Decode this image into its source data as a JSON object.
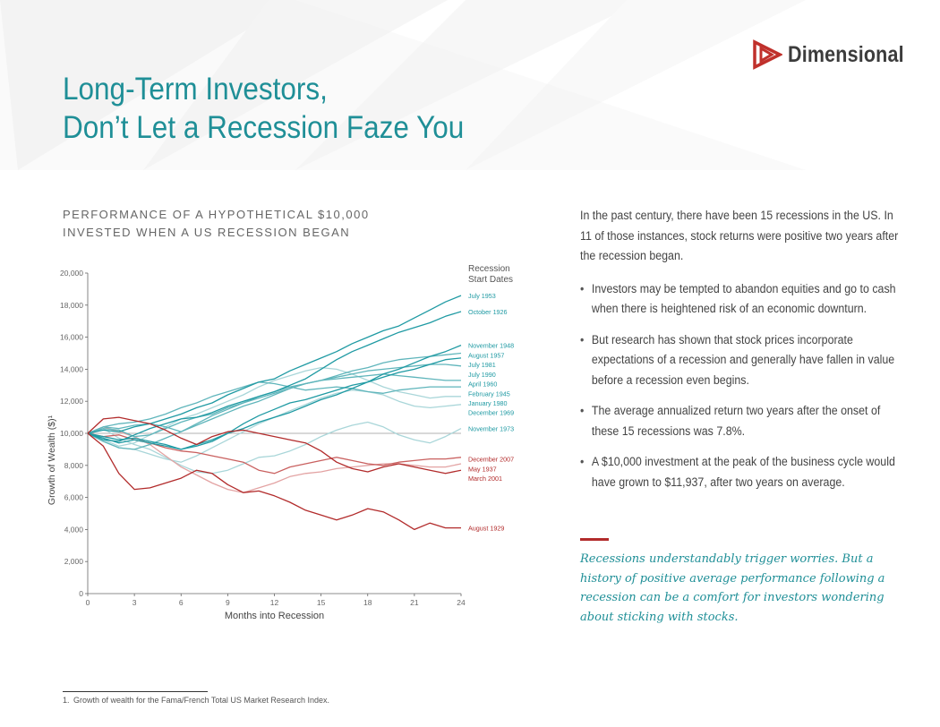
{
  "header": {
    "logo_text": "Dimensional",
    "title_line1": "Long-Term Investors,",
    "title_line2": "Don’t Let a Recession Faze You"
  },
  "chart_heading": {
    "line1": "PERFORMANCE OF A HYPOTHETICAL $10,000",
    "line2": "INVESTED WHEN A US RECESSION BEGAN"
  },
  "colors": {
    "teal": "#1f9aa3",
    "red": "#b22b2b",
    "light_teal": "#a9d6d9",
    "light_red": "#e3a3a3"
  },
  "chart_data": {
    "type": "line",
    "xlabel": "Months into Recession",
    "ylabel": "Growth of Wealth ($)¹",
    "legend_title": "Recession Start Dates",
    "xlim": [
      0,
      24
    ],
    "ylim": [
      0,
      20000
    ],
    "xticks": [
      0,
      3,
      6,
      9,
      12,
      15,
      18,
      21,
      24
    ],
    "yticks": [
      0,
      2000,
      4000,
      6000,
      8000,
      10000,
      12000,
      14000,
      16000,
      18000,
      20000
    ],
    "ytick_labels": [
      "0",
      "2,000",
      "4,000",
      "6,000",
      "8,000",
      "10,000",
      "12,000",
      "14,000",
      "16,000",
      "18,000",
      "20,000"
    ],
    "reference_line": 10000,
    "x": [
      0,
      1,
      2,
      3,
      4,
      5,
      6,
      7,
      8,
      9,
      10,
      11,
      12,
      13,
      14,
      15,
      16,
      17,
      18,
      19,
      20,
      21,
      22,
      23,
      24
    ],
    "series": [
      {
        "name": "July 1953",
        "color": "#1f9aa3",
        "shade": "dark",
        "values": [
          10000,
          10200,
          10100,
          10400,
          10600,
          10900,
          11200,
          11600,
          11900,
          12400,
          12800,
          13200,
          13400,
          13900,
          14300,
          14700,
          15100,
          15600,
          16000,
          16400,
          16700,
          17200,
          17700,
          18200,
          18600
        ]
      },
      {
        "name": "October 1926",
        "color": "#1f9aa3",
        "shade": "dark",
        "values": [
          10000,
          9600,
          9500,
          9900,
          10300,
          10600,
          10900,
          11000,
          11300,
          11700,
          12000,
          12300,
          12600,
          13000,
          13400,
          14000,
          14600,
          15100,
          15500,
          15900,
          16300,
          16600,
          16900,
          17300,
          17600
        ]
      },
      {
        "name": "November 1948",
        "color": "#1f9aa3",
        "shade": "dark",
        "values": [
          10000,
          9700,
          9400,
          9600,
          9400,
          9200,
          9000,
          9300,
          9600,
          10000,
          10300,
          10700,
          11000,
          11300,
          11700,
          12100,
          12400,
          12800,
          13200,
          13700,
          14000,
          14400,
          14800,
          15100,
          15500
        ]
      },
      {
        "name": "August 1957",
        "color": "#1f9aa3",
        "shade": "mid",
        "values": [
          10000,
          9500,
          9100,
          9000,
          9300,
          9700,
          10100,
          10500,
          10900,
          11300,
          11700,
          12000,
          12400,
          12800,
          13100,
          13300,
          13600,
          13900,
          14100,
          14400,
          14600,
          14700,
          14800,
          14900,
          15000
        ]
      },
      {
        "name": "July 1981",
        "color": "#1f9aa3",
        "shade": "dark",
        "values": [
          10000,
          9800,
          9600,
          9700,
          9500,
          9300,
          9000,
          9200,
          9500,
          10000,
          10600,
          11100,
          11500,
          11900,
          12100,
          12400,
          12700,
          13000,
          13200,
          13500,
          13800,
          14000,
          14300,
          14600,
          14700
        ]
      },
      {
        "name": "July 1990",
        "color": "#1f9aa3",
        "shade": "mid",
        "values": [
          10000,
          10400,
          10300,
          10500,
          10600,
          10400,
          10100,
          10600,
          11100,
          11500,
          11900,
          12300,
          12600,
          12900,
          13100,
          13300,
          13500,
          13700,
          13900,
          14000,
          14100,
          14200,
          14300,
          14300,
          14200
        ]
      },
      {
        "name": "April 1960",
        "color": "#1f9aa3",
        "shade": "mid",
        "values": [
          10000,
          10300,
          10200,
          9800,
          9900,
          10300,
          10700,
          11000,
          11200,
          11600,
          11900,
          12200,
          12500,
          12800,
          13100,
          13300,
          13400,
          13500,
          13600,
          13700,
          13600,
          13500,
          13400,
          13300,
          13300
        ]
      },
      {
        "name": "February 1945",
        "color": "#1f9aa3",
        "shade": "mid",
        "values": [
          10000,
          10400,
          10600,
          10700,
          10900,
          11200,
          11600,
          11900,
          12300,
          12600,
          12900,
          13200,
          13100,
          12900,
          12700,
          12800,
          12900,
          12800,
          12600,
          12500,
          12700,
          12800,
          12900,
          12900,
          12900
        ]
      },
      {
        "name": "January 1980",
        "color": "#1f9aa3",
        "shade": "light",
        "values": [
          10000,
          9600,
          9200,
          9400,
          9900,
          10400,
          10900,
          11200,
          11600,
          12000,
          12400,
          12900,
          13300,
          13600,
          13900,
          14100,
          14000,
          13700,
          13300,
          12900,
          12600,
          12400,
          12200,
          12300,
          12300
        ]
      },
      {
        "name": "December 1969",
        "color": "#1f9aa3",
        "shade": "light",
        "values": [
          10000,
          9500,
          9100,
          9000,
          8700,
          8400,
          8200,
          8600,
          9100,
          9600,
          10100,
          10600,
          11000,
          11400,
          11800,
          12200,
          12500,
          12700,
          12600,
          12400,
          12000,
          11700,
          11600,
          11700,
          11800
        ]
      },
      {
        "name": "November 1973",
        "color": "#1f9aa3",
        "shade": "light",
        "values": [
          10000,
          10300,
          9700,
          9300,
          9000,
          8500,
          8000,
          7600,
          7500,
          7700,
          8100,
          8500,
          8600,
          8900,
          9300,
          9800,
          10200,
          10500,
          10700,
          10400,
          9900,
          9600,
          9400,
          9800,
          10300
        ]
      },
      {
        "name": "December 2007",
        "color": "#b22b2b",
        "shade": "mid",
        "values": [
          10000,
          9800,
          9900,
          9600,
          9400,
          9100,
          8900,
          8800,
          8600,
          8400,
          8200,
          7700,
          7500,
          7900,
          8100,
          8300,
          8500,
          8300,
          8100,
          8000,
          8200,
          8300,
          8400,
          8400,
          8500
        ]
      },
      {
        "name": "May 1937",
        "color": "#b22b2b",
        "shade": "light",
        "values": [
          10000,
          10400,
          10100,
          9800,
          9300,
          8600,
          7900,
          7400,
          6900,
          6500,
          6300,
          6600,
          6900,
          7300,
          7500,
          7600,
          7800,
          7900,
          8000,
          8100,
          8100,
          8000,
          7900,
          7900,
          8100
        ]
      },
      {
        "name": "March 2001",
        "color": "#b22b2b",
        "shade": "dark",
        "values": [
          10000,
          10900,
          11000,
          10800,
          10600,
          10200,
          9700,
          9300,
          9800,
          10100,
          10200,
          10000,
          9800,
          9600,
          9400,
          8900,
          8200,
          7800,
          7600,
          7900,
          8100,
          7900,
          7700,
          7500,
          7700
        ]
      },
      {
        "name": "August 1929",
        "color": "#b22b2b",
        "shade": "dark",
        "values": [
          10000,
          9200,
          7500,
          6500,
          6600,
          6900,
          7200,
          7700,
          7500,
          6800,
          6300,
          6400,
          6100,
          5700,
          5200,
          4900,
          4600,
          4900,
          5300,
          5100,
          4600,
          4000,
          4400,
          4100,
          4100
        ]
      }
    ],
    "legend_labels_left": [
      {
        "series": "December 1969",
        "y": 12000
      },
      {
        "series": "November 1973",
        "y": 10300
      }
    ]
  },
  "body": {
    "intro": "In the past century, there have been 15 recessions in the US. In 11 of those instances, stock returns were positive two years after the recession began.",
    "bullets": [
      "Investors may be tempted to abandon equities and go to cash when there is heightened risk of an economic downturn.",
      "But research has shown that stock prices incorporate expectations of a recession and generally have fallen in value before a recession even begins.",
      "The average annualized return two years after the onset of these 15 recessions was 7.8%.",
      "A $10,000 investment at the peak of the business cycle would have grown to $11,937, after two years on average."
    ],
    "quote": "Recessions understandably trigger worries. But a history of positive average performance following a recession can be a comfort for investors wondering about sticking with stocks."
  },
  "footnote": "1. Growth of wealth for the Fama/French Total US Market Research Index."
}
